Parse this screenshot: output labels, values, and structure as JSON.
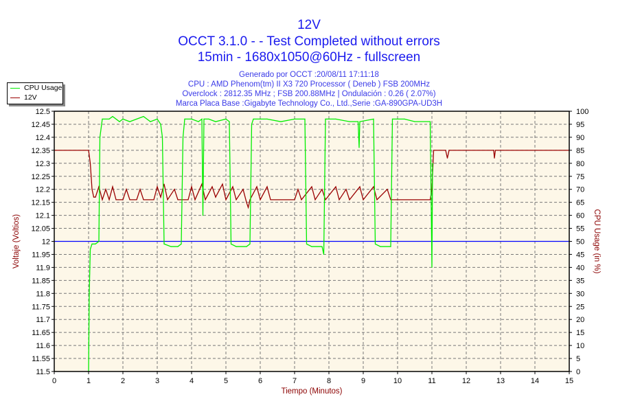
{
  "chart_data": {
    "type": "line",
    "title": "12V",
    "subtitle_lines": [
      "OCCT 3.1.0 -  - Test Completed without errors",
      "15min - 1680x1050@60Hz - fullscreen"
    ],
    "info_lines": [
      "Generado por OCCT :20/08/11 17:11:18",
      "CPU : AMD Phenom(tm) II X3 720 Processor ( Deneb ) FSB 200MHz",
      "Overclock : 2812.35 MHz ; FSB 200.88MHz | Ondulación : 0.26 ( 2.07%)",
      "Marca Placa Base :Gigabyte Technology Co., Ltd.,Serie :GA-890GPA-UD3H"
    ],
    "xlabel": "Tiempo (Minutos)",
    "ylabel": "Voltaje (Voltios)",
    "y2label": "CPU Usage (in %)",
    "xlim": [
      0,
      15
    ],
    "ylim": [
      11.5,
      12.5
    ],
    "y2lim": [
      0,
      100
    ],
    "xticks": [
      0,
      1,
      2,
      3,
      4,
      5,
      6,
      7,
      8,
      9,
      10,
      11,
      12,
      13,
      14,
      15
    ],
    "yticks": [
      "12.5",
      "12.45",
      "12.4",
      "12.35",
      "12.3",
      "12.25",
      "12.2",
      "12.15",
      "12.1",
      "12.05",
      "12",
      "11.95",
      "11.9",
      "11.85",
      "11.8",
      "11.75",
      "11.7",
      "11.65",
      "11.6",
      "11.55",
      "11.5"
    ],
    "y2ticks": [
      100,
      95,
      90,
      85,
      80,
      75,
      70,
      65,
      60,
      55,
      50,
      45,
      40,
      35,
      30,
      25,
      20,
      15,
      10,
      5,
      0
    ],
    "grid": true,
    "legend_position": "top-left",
    "reference_line": {
      "value": 12.0,
      "color": "#0000ff"
    },
    "colors": {
      "cpu": "#00ee00",
      "volt": "#990000",
      "plot_bg": "#fdf7e8",
      "axis_label": "#8b0000"
    },
    "series": [
      {
        "name": "CPU Usage",
        "axis": "right",
        "points": [
          [
            1.0,
            0
          ],
          [
            1.02,
            30
          ],
          [
            1.05,
            47
          ],
          [
            1.1,
            49
          ],
          [
            1.2,
            49
          ],
          [
            1.3,
            50
          ],
          [
            1.33,
            90
          ],
          [
            1.4,
            97
          ],
          [
            1.6,
            97
          ],
          [
            1.7,
            98
          ],
          [
            1.9,
            96
          ],
          [
            2.0,
            97
          ],
          [
            2.2,
            96
          ],
          [
            2.4,
            97
          ],
          [
            2.6,
            98
          ],
          [
            2.8,
            96
          ],
          [
            3.0,
            97
          ],
          [
            3.1,
            95
          ],
          [
            3.15,
            90
          ],
          [
            3.2,
            49
          ],
          [
            3.4,
            48
          ],
          [
            3.6,
            48
          ],
          [
            3.7,
            49
          ],
          [
            3.75,
            90
          ],
          [
            3.8,
            97
          ],
          [
            4.0,
            97
          ],
          [
            4.2,
            96
          ],
          [
            4.3,
            97
          ],
          [
            4.33,
            60
          ],
          [
            4.36,
            97
          ],
          [
            4.5,
            97
          ],
          [
            4.7,
            96
          ],
          [
            5.0,
            97
          ],
          [
            5.1,
            96
          ],
          [
            5.15,
            49
          ],
          [
            5.3,
            48
          ],
          [
            5.6,
            48
          ],
          [
            5.7,
            49
          ],
          [
            5.75,
            95
          ],
          [
            5.8,
            97
          ],
          [
            6.2,
            97
          ],
          [
            6.6,
            96
          ],
          [
            7.0,
            97
          ],
          [
            7.3,
            97
          ],
          [
            7.35,
            49
          ],
          [
            7.5,
            48
          ],
          [
            7.8,
            48
          ],
          [
            7.85,
            45
          ],
          [
            7.9,
            97
          ],
          [
            8.2,
            97
          ],
          [
            8.6,
            96
          ],
          [
            8.85,
            96
          ],
          [
            8.88,
            86
          ],
          [
            8.9,
            96
          ],
          [
            9.3,
            97
          ],
          [
            9.35,
            49
          ],
          [
            9.5,
            48
          ],
          [
            9.8,
            48
          ],
          [
            9.85,
            97
          ],
          [
            10.2,
            97
          ],
          [
            10.5,
            96
          ],
          [
            10.95,
            96
          ],
          [
            11.0,
            40
          ],
          [
            11.02,
            80
          ]
        ]
      },
      {
        "name": "12V",
        "axis": "left",
        "points": [
          [
            0,
            12.35
          ],
          [
            1.0,
            12.35
          ],
          [
            1.05,
            12.3
          ],
          [
            1.1,
            12.2
          ],
          [
            1.15,
            12.17
          ],
          [
            1.2,
            12.17
          ],
          [
            1.3,
            12.21
          ],
          [
            1.4,
            12.16
          ],
          [
            1.5,
            12.2
          ],
          [
            1.6,
            12.16
          ],
          [
            1.7,
            12.21
          ],
          [
            1.8,
            12.16
          ],
          [
            2.0,
            12.16
          ],
          [
            2.1,
            12.2
          ],
          [
            2.2,
            12.16
          ],
          [
            2.4,
            12.16
          ],
          [
            2.5,
            12.2
          ],
          [
            2.6,
            12.16
          ],
          [
            2.9,
            12.16
          ],
          [
            3.0,
            12.21
          ],
          [
            3.1,
            12.17
          ],
          [
            3.2,
            12.22
          ],
          [
            3.3,
            12.16
          ],
          [
            3.5,
            12.2
          ],
          [
            3.6,
            12.16
          ],
          [
            3.9,
            12.16
          ],
          [
            4.0,
            12.21
          ],
          [
            4.1,
            12.16
          ],
          [
            4.3,
            12.22
          ],
          [
            4.4,
            12.16
          ],
          [
            4.6,
            12.21
          ],
          [
            4.7,
            12.17
          ],
          [
            4.9,
            12.22
          ],
          [
            5.0,
            12.16
          ],
          [
            5.2,
            12.21
          ],
          [
            5.3,
            12.16
          ],
          [
            5.5,
            12.2
          ],
          [
            5.6,
            12.15
          ],
          [
            5.65,
            12.13
          ],
          [
            5.7,
            12.16
          ],
          [
            5.9,
            12.21
          ],
          [
            6.0,
            12.16
          ],
          [
            6.2,
            12.21
          ],
          [
            6.3,
            12.16
          ],
          [
            7.0,
            12.16
          ],
          [
            7.1,
            12.2
          ],
          [
            7.2,
            12.16
          ],
          [
            7.5,
            12.21
          ],
          [
            7.6,
            12.16
          ],
          [
            7.8,
            12.2
          ],
          [
            7.9,
            12.16
          ],
          [
            8.2,
            12.21
          ],
          [
            8.3,
            12.16
          ],
          [
            8.5,
            12.2
          ],
          [
            8.6,
            12.16
          ],
          [
            8.9,
            12.21
          ],
          [
            9.0,
            12.16
          ],
          [
            9.3,
            12.21
          ],
          [
            9.4,
            12.16
          ],
          [
            9.7,
            12.2
          ],
          [
            9.8,
            12.16
          ],
          [
            10.95,
            12.16
          ],
          [
            11.0,
            12.2
          ],
          [
            11.05,
            12.35
          ],
          [
            11.4,
            12.35
          ],
          [
            11.45,
            12.32
          ],
          [
            11.5,
            12.35
          ],
          [
            12.8,
            12.35
          ],
          [
            12.82,
            12.32
          ],
          [
            12.85,
            12.35
          ],
          [
            15,
            12.35
          ]
        ]
      }
    ]
  }
}
